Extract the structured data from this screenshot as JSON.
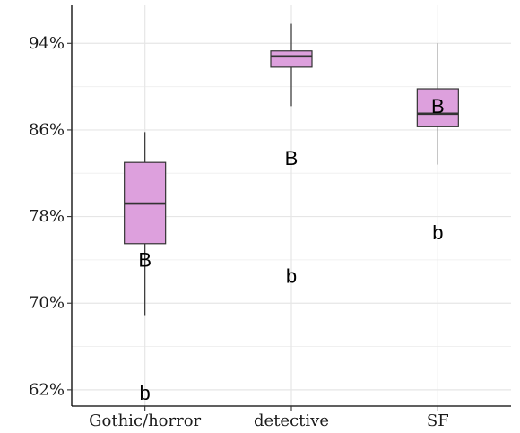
{
  "chart_data": {
    "type": "box",
    "categories": [
      "Gothic/horror",
      "detective",
      "SF"
    ],
    "y_ticks": [
      62,
      70,
      78,
      86,
      94
    ],
    "y_tick_labels": [
      "62%",
      "70%",
      "78%",
      "86%",
      "94%"
    ],
    "ylim": [
      60.5,
      97.5
    ],
    "grid": true,
    "fill_color": "#dda0dd",
    "boxes": [
      {
        "category": "Gothic/horror",
        "whisker_low": 68.9,
        "q1": 75.5,
        "median": 79.2,
        "q3": 83.0,
        "whisker_high": 85.8
      },
      {
        "category": "detective",
        "whisker_low": 88.2,
        "q1": 91.8,
        "median": 92.8,
        "q3": 93.3,
        "whisker_high": 95.8
      },
      {
        "category": "SF",
        "whisker_low": 82.8,
        "q1": 86.3,
        "median": 87.5,
        "q3": 89.8,
        "whisker_high": 94.0
      }
    ],
    "annotations": [
      {
        "category": "Gothic/horror",
        "text": "B",
        "y": 74.0
      },
      {
        "category": "Gothic/horror",
        "text": "b",
        "y": 61.7
      },
      {
        "category": "detective",
        "text": "B",
        "y": 83.4
      },
      {
        "category": "detective",
        "text": "b",
        "y": 72.5
      },
      {
        "category": "SF",
        "text": "B",
        "y": 88.2
      },
      {
        "category": "SF",
        "text": "b",
        "y": 76.5
      }
    ]
  }
}
